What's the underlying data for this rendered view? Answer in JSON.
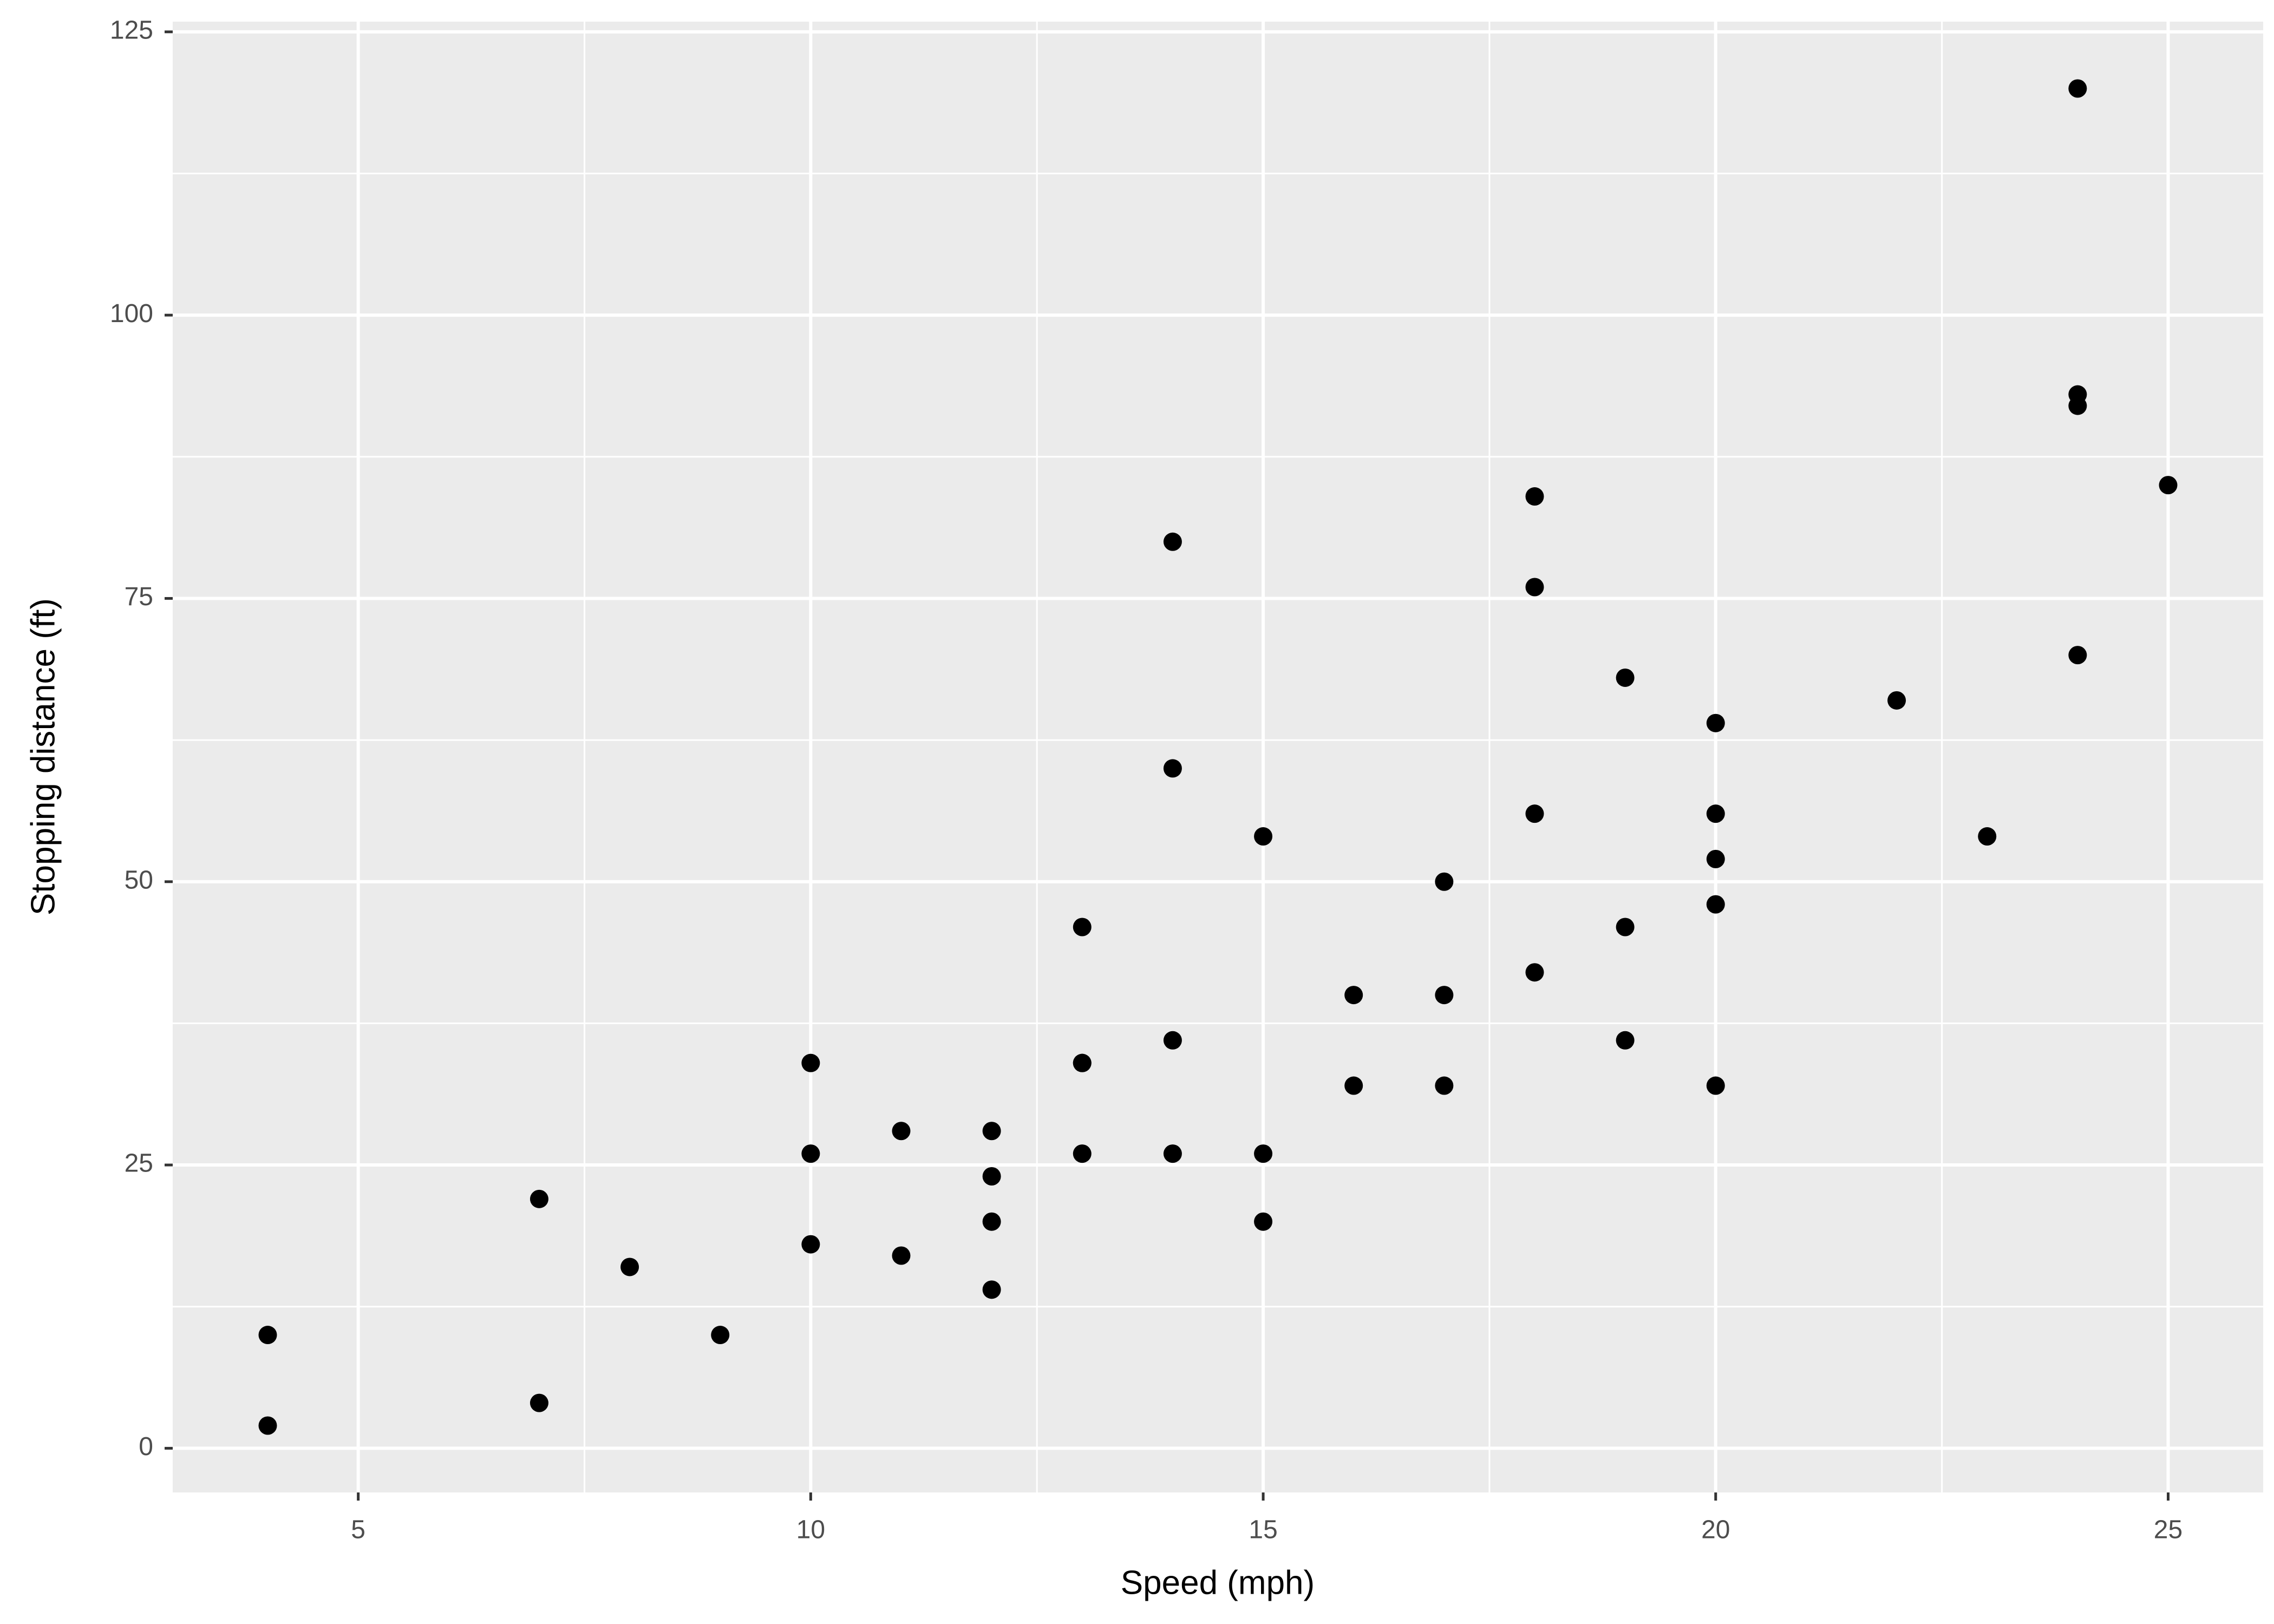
{
  "chart_data": {
    "type": "scatter",
    "x_label": "Speed (mph)",
    "y_label": "Stopping distance (ft)",
    "xlim": [
      2.95,
      26.05
    ],
    "ylim": [
      -3.9,
      125.9
    ],
    "xticks": [
      5,
      10,
      15,
      20,
      25
    ],
    "yticks": [
      0,
      25,
      50,
      75,
      100,
      125
    ],
    "grid": true,
    "minor_grid": true,
    "panel_color": "#ebebeb",
    "grid_color": "#ffffff",
    "series": [
      {
        "color": "#000000",
        "x": [
          4,
          4,
          7,
          7,
          8,
          9,
          10,
          10,
          10,
          11,
          11,
          12,
          12,
          12,
          12,
          13,
          13,
          13,
          13,
          14,
          14,
          14,
          14,
          15,
          15,
          15,
          16,
          16,
          17,
          17,
          17,
          18,
          18,
          18,
          18,
          19,
          19,
          19,
          20,
          20,
          20,
          20,
          20,
          22,
          23,
          24,
          24,
          24,
          24,
          25
        ],
        "values": [
          2,
          10,
          4,
          22,
          16,
          10,
          18,
          26,
          34,
          17,
          28,
          14,
          20,
          24,
          28,
          26,
          34,
          34,
          46,
          26,
          36,
          60,
          80,
          20,
          26,
          54,
          32,
          40,
          32,
          40,
          50,
          42,
          56,
          76,
          84,
          36,
          46,
          68,
          32,
          48,
          52,
          56,
          64,
          66,
          54,
          70,
          92,
          93,
          120,
          85
        ]
      }
    ]
  }
}
